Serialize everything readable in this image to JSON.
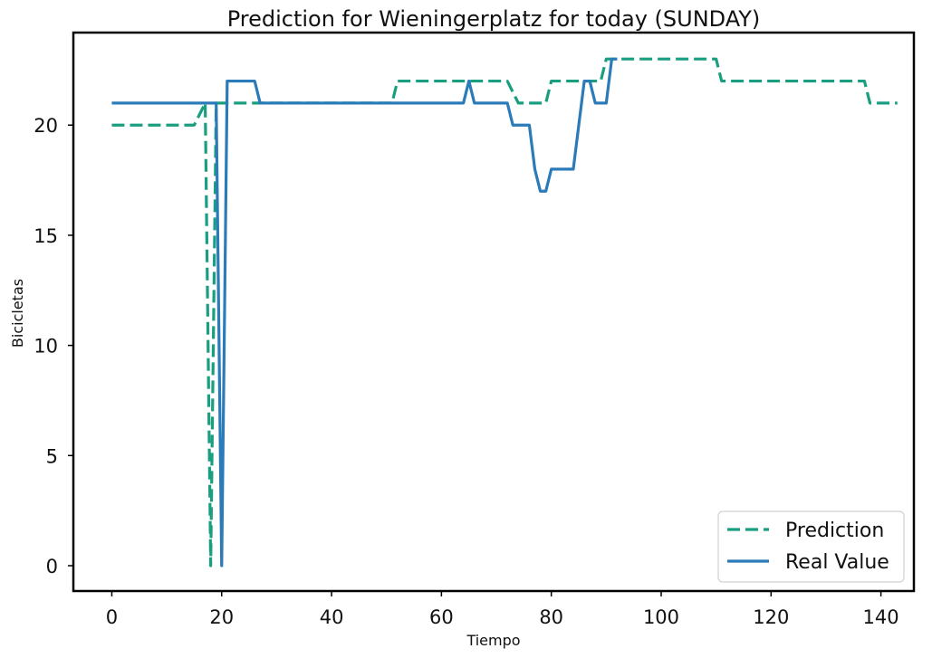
{
  "chart_data": {
    "type": "line",
    "title": "Prediction for Wieningerplatz for today (SUNDAY)",
    "xlabel": "Tiempo",
    "ylabel": "Bicicletas",
    "xlim": [
      -7,
      146
    ],
    "ylim": [
      -1.15,
      24.2
    ],
    "xticks": [
      0,
      20,
      40,
      60,
      80,
      100,
      120,
      140
    ],
    "yticks": [
      0,
      5,
      10,
      15,
      20
    ],
    "grid": false,
    "legend_position": "bottom-right",
    "series": [
      {
        "name": "Prediction",
        "color": "#1a9e80",
        "dash": "dashed",
        "x": [
          0,
          15,
          17,
          18,
          19,
          20,
          51,
          52,
          72,
          74,
          79,
          80,
          89,
          90,
          110,
          111,
          137,
          138,
          143
        ],
        "y": [
          20,
          20,
          21,
          0,
          21,
          21,
          21,
          22,
          22,
          21,
          21,
          22,
          22,
          23,
          23,
          22,
          22,
          21,
          21
        ]
      },
      {
        "name": "Real Value",
        "color": "#2b7bb9",
        "dash": "solid",
        "x": [
          0,
          19,
          20,
          21,
          26,
          27,
          64,
          65,
          66,
          72,
          73,
          76,
          77,
          78,
          79,
          80,
          84,
          86,
          87,
          88,
          90,
          91,
          92
        ],
        "y": [
          21,
          21,
          0,
          22,
          22,
          21,
          21,
          22,
          21,
          21,
          20,
          20,
          18,
          17,
          17,
          18,
          18,
          22,
          22,
          21,
          21,
          23,
          23
        ]
      }
    ]
  }
}
